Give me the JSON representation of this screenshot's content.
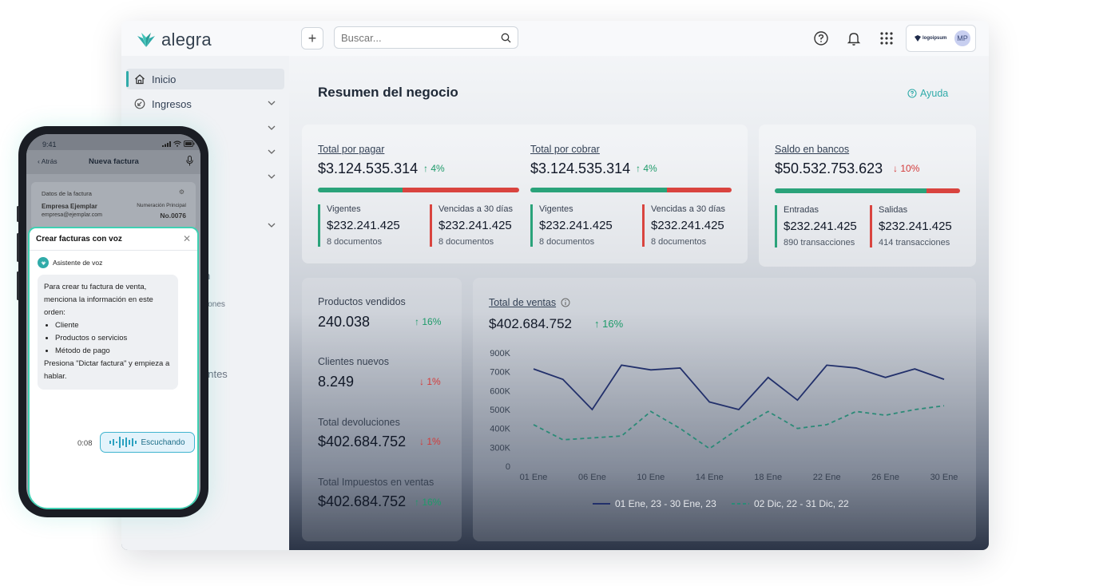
{
  "brand": {
    "name": "alegra",
    "accent": "#30aba9"
  },
  "topbar": {
    "search_placeholder": "Buscar...",
    "company_logo": "logoipsum",
    "avatar_initials": "MP"
  },
  "sidebar": {
    "items": [
      {
        "label": "Inicio",
        "icon": "home-icon"
      },
      {
        "label": "Ingresos",
        "icon": "income-icon"
      }
    ],
    "fragments": [
      "n",
      "ciones",
      "entes"
    ]
  },
  "main": {
    "title": "Resumen del negocio",
    "help_label": "Ayuda",
    "pagar": {
      "label": "Total por pagar",
      "value": "$3.124.535.314",
      "pct": "4%",
      "vigentes_label": "Vigentes",
      "vigentes_value": "$232.241.425",
      "vigentes_docs": "8 documentos",
      "vencidas_label": "Vencidas a 30 días",
      "vencidas_value": "$232.241.425",
      "vencidas_docs": "8 documentos",
      "green_share": 0.42
    },
    "cobrar": {
      "label": "Total por cobrar",
      "value": "$3.124.535.314",
      "pct": "4%",
      "vigentes_label": "Vigentes",
      "vigentes_value": "$232.241.425",
      "vigentes_docs": "8 documentos",
      "vencidas_label": "Vencidas a 30 días",
      "vencidas_value": "$232.241.425",
      "vencidas_docs": "8 documentos",
      "green_share": 0.68
    },
    "bancos": {
      "label": "Saldo en bancos",
      "value": "$50.532.753.623",
      "pct": "10%",
      "entradas_label": "Entradas",
      "entradas_value": "$232.241.425",
      "entradas_tx": "890 transacciones",
      "salidas_label": "Salidas",
      "salidas_value": "$232.241.425",
      "salidas_tx": "414 transacciones",
      "green_share": 0.82
    },
    "stats": [
      {
        "label": "Productos vendidos",
        "value": "240.038",
        "pct": "16%",
        "dir": "up"
      },
      {
        "label": "Clientes nuevos",
        "value": "8.249",
        "pct": "1%",
        "dir": "down"
      },
      {
        "label": "Total devoluciones",
        "value": "$402.684.752",
        "pct": "1%",
        "dir": "down"
      },
      {
        "label": "Total Impuestos en ventas",
        "value": "$402.684.752",
        "pct": "16%",
        "dir": "up"
      }
    ],
    "ventas": {
      "label": "Total de ventas",
      "value": "$402.684.752",
      "pct": "16%"
    }
  },
  "chart_data": {
    "type": "line",
    "title": "Total de ventas",
    "xlabel": "",
    "ylabel": "",
    "x_ticks": [
      "01 Ene",
      "06 Ene",
      "10 Ene",
      "14 Ene",
      "18 Ene",
      "22 Ene",
      "26 Ene",
      "30 Ene"
    ],
    "y_ticks": [
      "0",
      "300K",
      "400K",
      "500K",
      "600K",
      "700K",
      "900K"
    ],
    "y_tick_positions": [
      0,
      300000,
      400000,
      500000,
      600000,
      700000,
      900000
    ],
    "ylim": [
      0,
      900000
    ],
    "grid": false,
    "legend_placement": "bottom",
    "series": [
      {
        "name": "01 Ene, 23 - 30 Ene, 23",
        "style": "solid",
        "color": "#22306b",
        "values": [
          730000,
          660000,
          500000,
          770000,
          720000,
          740000,
          540000,
          500000,
          670000,
          550000,
          770000,
          740000,
          670000,
          730000,
          660000
        ]
      },
      {
        "name": "02 Dic, 22 - 31 Dic, 22",
        "style": "dashed",
        "color": "#2b8a77",
        "values": [
          420000,
          340000,
          350000,
          360000,
          490000,
          400000,
          280000,
          400000,
          490000,
          400000,
          420000,
          490000,
          470000,
          500000,
          520000
        ]
      }
    ]
  },
  "phone": {
    "time": "9:41",
    "back_label": "Atrás",
    "screen_title": "Nueva factura",
    "datos_label": "Datos de la factura",
    "empresa": "Empresa Ejemplar",
    "email": "empresa@ejemplar.com",
    "numeracion_label": "Numeración Principal",
    "numero": "No.0076",
    "sheet_title": "Crear facturas con voz",
    "assistant_label": "Asistente de voz",
    "intro": "Para crear tu factura de venta, menciona la información en este orden:",
    "steps": [
      "Cliente",
      "Productos o servicios",
      "Método de pago"
    ],
    "outro": "Presiona \"Dictar factura\" y empieza a hablar.",
    "timer": "0:08",
    "listening_label": "Escuchando"
  }
}
